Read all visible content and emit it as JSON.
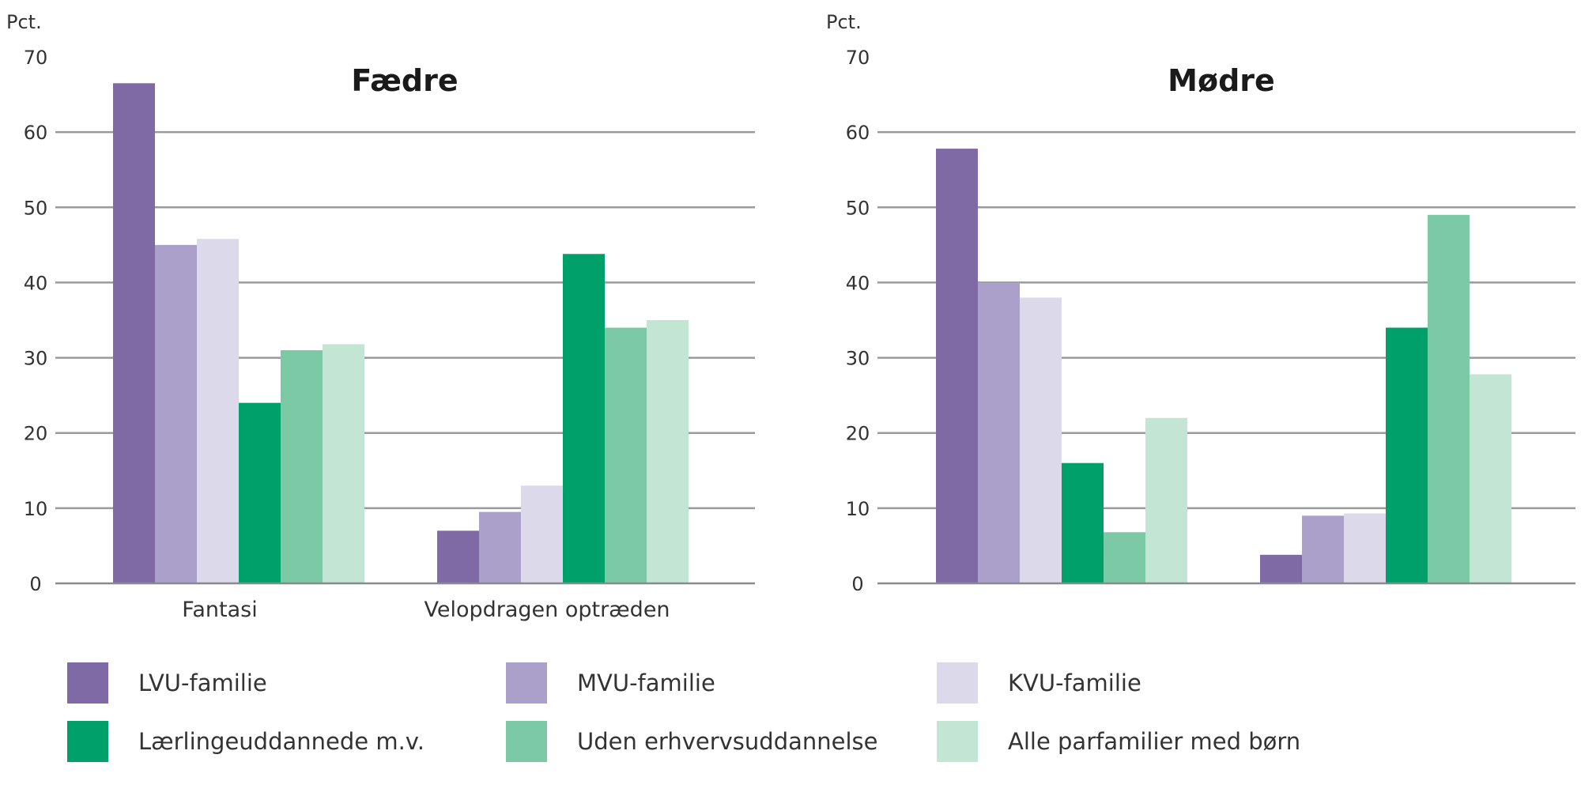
{
  "colors": {
    "LVU": "#7f6aa6",
    "MVU": "#aaa0c9",
    "KVU": "#dcd9eb",
    "LAER": "#00a06a",
    "UDEN": "#7ccaa5",
    "ALLE": "#c3e6d4"
  },
  "legend": [
    {
      "label": "LVU-familie",
      "color_key": "LVU"
    },
    {
      "label": "MVU-familie",
      "color_key": "MVU"
    },
    {
      "label": "KVU-familie",
      "color_key": "KVU"
    },
    {
      "label": "Lærlingeuddannede m.v.",
      "color_key": "LAER"
    },
    {
      "label": "Uden erhvervsuddannelse",
      "color_key": "UDEN"
    },
    {
      "label": "Alle parfamilier med børn",
      "color_key": "ALLE"
    }
  ],
  "chart_data": [
    {
      "type": "bar",
      "title": "Fædre",
      "ylabel": "Pct.",
      "ylim": [
        0,
        70
      ],
      "yticks": [
        "0",
        "10",
        "20",
        "30",
        "40",
        "50",
        "60",
        "70"
      ],
      "categories": [
        "Fantasi",
        "Velopdragen optræden"
      ],
      "series": [
        {
          "name": "LVU-familie",
          "color_key": "LVU",
          "values": [
            66.5,
            7
          ]
        },
        {
          "name": "MVU-familie",
          "color_key": "MVU",
          "values": [
            45,
            9.5
          ]
        },
        {
          "name": "KVU-familie",
          "color_key": "KVU",
          "values": [
            45.8,
            13
          ]
        },
        {
          "name": "Lærlingeuddannede m.v.",
          "color_key": "LAER",
          "values": [
            24,
            43.8
          ]
        },
        {
          "name": "Uden erhvervsuddannelse",
          "color_key": "UDEN",
          "values": [
            31,
            34
          ]
        },
        {
          "name": "Alle parfamilier med børn",
          "color_key": "ALLE",
          "values": [
            31.8,
            35
          ]
        }
      ]
    },
    {
      "type": "bar",
      "title": "Mødre",
      "ylabel": "Pct.",
      "ylim": [
        0,
        70
      ],
      "yticks": [
        "0",
        "10",
        "20",
        "30",
        "40",
        "50",
        "60",
        "70"
      ],
      "categories": [
        "",
        ""
      ],
      "series": [
        {
          "name": "LVU-familie",
          "color_key": "LVU",
          "values": [
            57.8,
            3.8
          ]
        },
        {
          "name": "MVU-familie",
          "color_key": "MVU",
          "values": [
            40,
            9
          ]
        },
        {
          "name": "KVU-familie",
          "color_key": "KVU",
          "values": [
            38,
            9.3
          ]
        },
        {
          "name": "Lærlingeuddannede m.v.",
          "color_key": "LAER",
          "values": [
            16,
            34
          ]
        },
        {
          "name": "Uden erhvervsuddannelse",
          "color_key": "UDEN",
          "values": [
            6.8,
            49
          ]
        },
        {
          "name": "Alle parfamilier med børn",
          "color_key": "ALLE",
          "values": [
            22,
            27.8
          ]
        }
      ]
    }
  ]
}
